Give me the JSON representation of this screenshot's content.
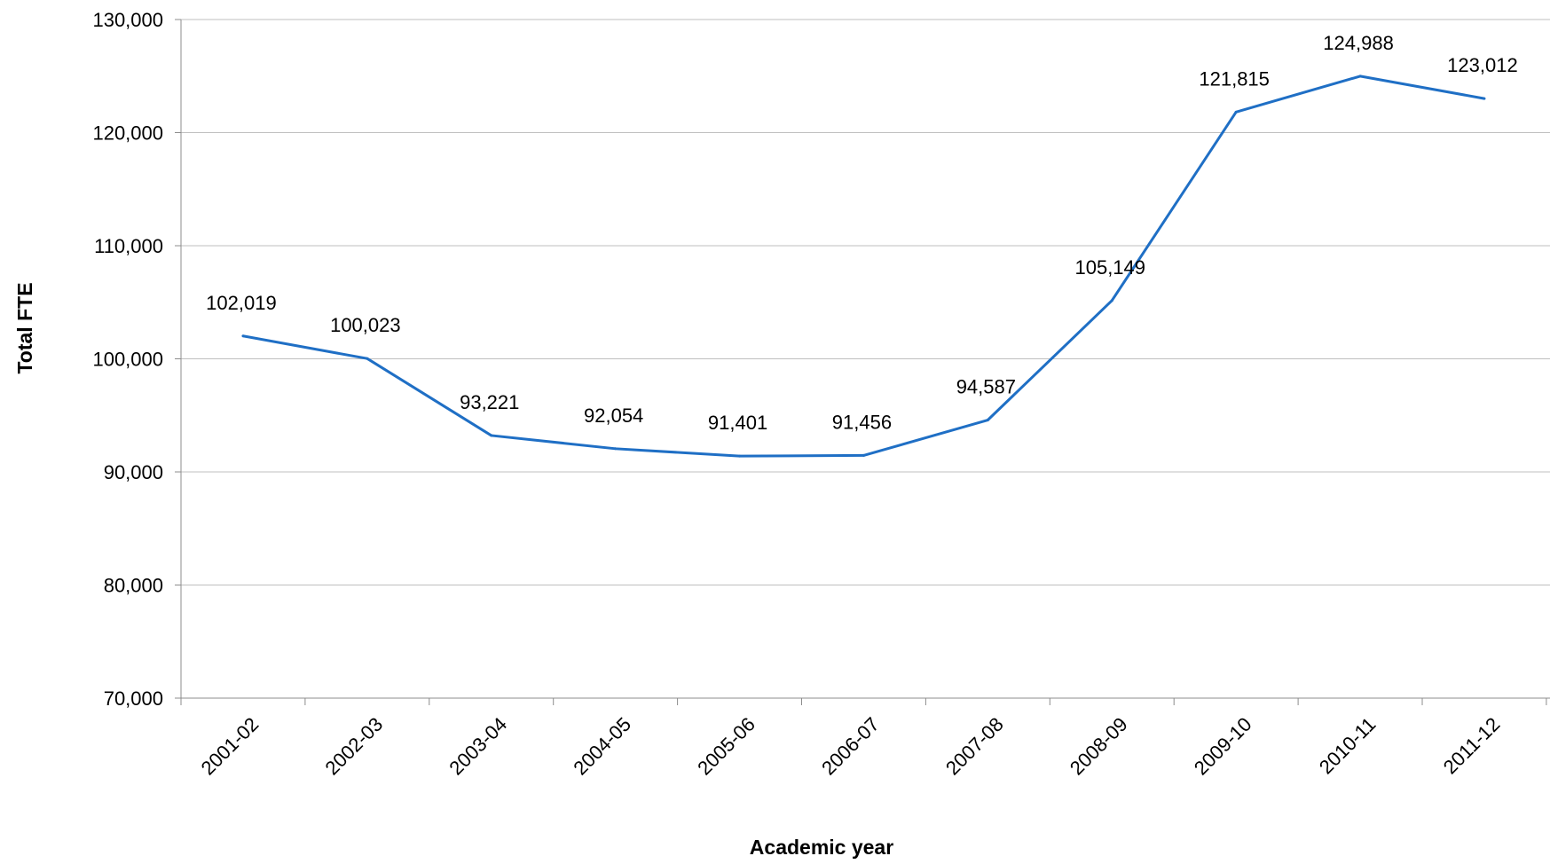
{
  "chart_data": {
    "type": "line",
    "categories": [
      "2001-02",
      "2002-03",
      "2003-04",
      "2004-05",
      "2005-06",
      "2006-07",
      "2007-08",
      "2008-09",
      "2009-10",
      "2010-11",
      "2011-12"
    ],
    "series": [
      {
        "values": [
          102019,
          100023,
          93221,
          92054,
          91401,
          91456,
          94587,
          105149,
          121815,
          124988,
          123012
        ],
        "color": "#1f6fc5"
      }
    ],
    "data_labels": [
      "102,019",
      "100,023",
      "93,221",
      "92,054",
      "91,401",
      "91,456",
      "94,587",
      "105,149",
      "121,815",
      "124,988",
      "123,012"
    ],
    "xlabel": "Academic year",
    "ylabel": "Total FTE",
    "ylim": [
      70000,
      130000
    ],
    "yticks": [
      70000,
      80000,
      90000,
      100000,
      110000,
      120000,
      130000
    ],
    "ytick_labels": [
      "70,000",
      "80,000",
      "90,000",
      "100,000",
      "110,000",
      "120,000",
      "130,000"
    ],
    "grid": true,
    "legend": "none"
  }
}
